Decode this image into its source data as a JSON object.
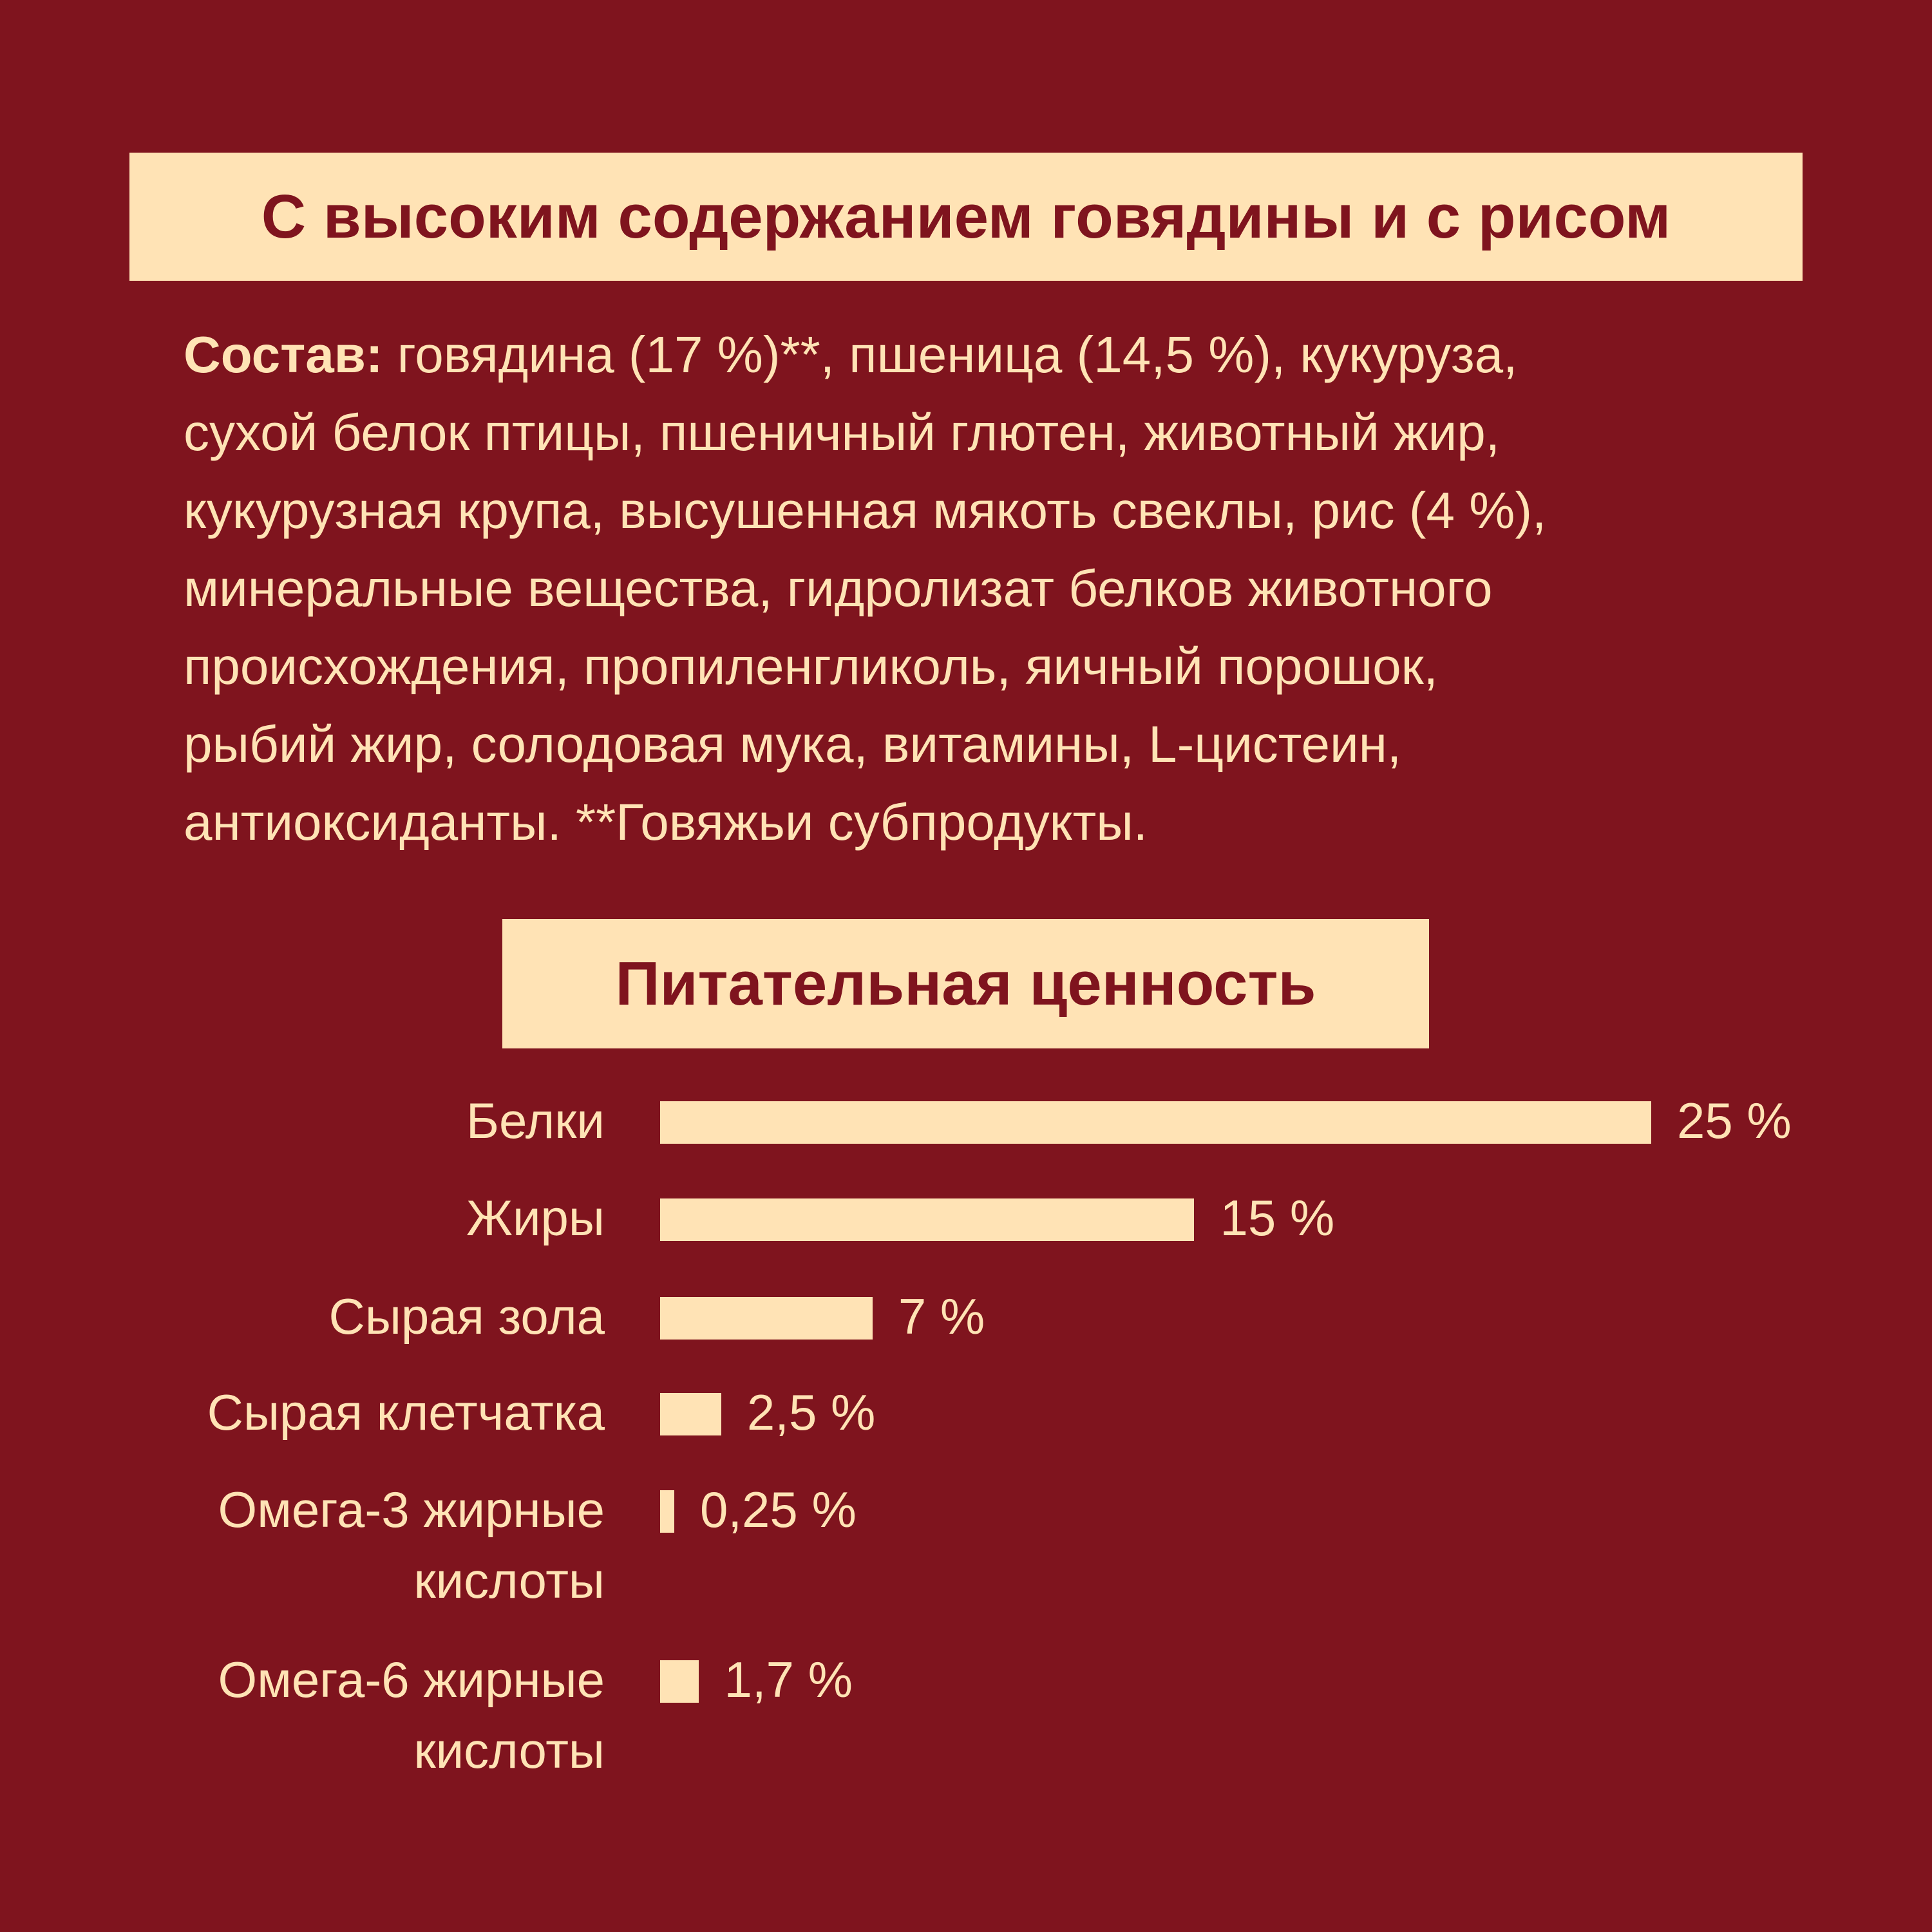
{
  "title": "С высоким содержанием говядины и с рисом",
  "composition": {
    "label": "Состав:",
    "lines": [
      " говядина (17 %)**, пшеница (14,5 %), кукуруза,",
      "сухой белок птицы, пшеничный глютен, животный жир,",
      "кукурузная крупа, высушенная мякоть свеклы, рис (4 %),",
      "минеральные вещества, гидролизат белков животного",
      "происхождения, пропиленгликоль, яичный порошок,",
      "рыбий жир, солодовая мука, витамины, L-цистеин,",
      "антиоксиданты. **Говяжьи субпродукты."
    ]
  },
  "nutrition": {
    "title": "Питательная ценность",
    "colors": {
      "background": "#7F141E",
      "bar": "#FFE3B5"
    },
    "items": [
      {
        "label": "Белки",
        "value": 25,
        "value_text": "25 %"
      },
      {
        "label": "Жиры",
        "value": 15,
        "value_text": "15 %"
      },
      {
        "label": "Сырая зола",
        "value": 7,
        "value_text": "7 %"
      },
      {
        "label": "Сырая клетчатка",
        "value": 2.5,
        "value_text": "2,5 %"
      },
      {
        "label": "Омега-3 жирные кислоты",
        "value": 0.25,
        "value_text": "0,25 %"
      },
      {
        "label": "Омега-6 жирные кислоты",
        "value": 1.7,
        "value_text": "1,7 %"
      }
    ]
  }
}
